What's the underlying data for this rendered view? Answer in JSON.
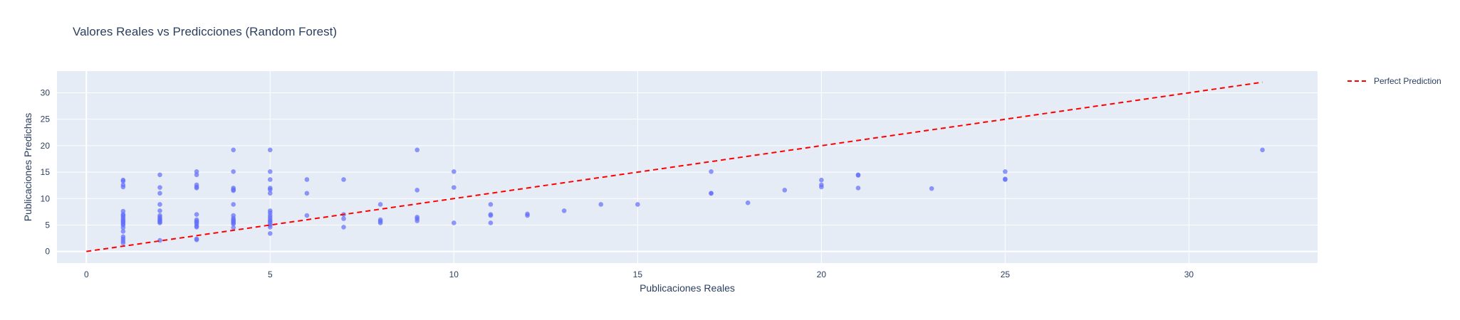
{
  "chart_data": {
    "type": "scatter",
    "title": "Valores Reales vs Predicciones (Random Forest)",
    "xlabel": "Publicaciones Reales",
    "ylabel": "Publicaciones Predichas",
    "xlim": [
      -0.8,
      33.5
    ],
    "ylim": [
      -2.2,
      34.1
    ],
    "xticks": [
      0,
      5,
      10,
      15,
      20,
      25,
      30
    ],
    "yticks": [
      0,
      5,
      10,
      15,
      20,
      25,
      30
    ],
    "grid": true,
    "legend_position": "top-right",
    "colors": {
      "points": "#636efa",
      "line": "#ff0000",
      "plot_bg": "#e5ecf6",
      "grid": "#ffffff",
      "text": "#2a3f5f"
    },
    "series": [
      {
        "type": "scatter",
        "x": [
          1,
          1,
          1,
          1,
          1,
          1,
          1,
          1,
          1,
          1,
          1,
          1,
          1,
          1,
          1,
          1,
          1,
          1,
          1,
          1,
          2,
          2,
          2,
          2,
          2,
          2,
          2,
          2,
          2,
          2,
          2,
          2,
          2,
          3,
          3,
          3,
          3,
          3,
          3,
          3,
          3,
          3,
          3,
          3,
          3,
          3,
          3,
          4,
          4,
          4,
          4,
          4,
          4,
          4,
          4,
          4,
          4,
          4,
          4,
          4,
          4,
          5,
          5,
          5,
          5,
          5,
          5,
          5,
          5,
          5,
          5,
          5,
          5,
          5,
          5,
          5,
          5,
          6,
          6,
          6,
          7,
          7,
          7,
          7,
          8,
          8,
          8,
          8,
          9,
          9,
          9,
          9,
          9,
          10,
          10,
          10,
          11,
          11,
          11,
          11,
          12,
          12,
          13,
          14,
          15,
          17,
          17,
          17,
          18,
          19,
          20,
          20,
          20,
          21,
          21,
          21,
          23,
          25,
          25,
          25,
          32
        ],
        "y": [
          13.5,
          13.3,
          12.6,
          12.2,
          7.6,
          7.0,
          6.8,
          6.5,
          6.2,
          5.9,
          5.7,
          5.5,
          5.2,
          5.0,
          4.5,
          3.8,
          2.8,
          2.4,
          2.0,
          1.6,
          14.5,
          12.1,
          11.0,
          8.9,
          7.7,
          6.8,
          6.5,
          6.2,
          6.0,
          5.8,
          5.6,
          5.4,
          2.1,
          15.1,
          14.5,
          12.6,
          12.2,
          12.0,
          7.0,
          6.0,
          5.7,
          5.5,
          5.2,
          4.8,
          4.6,
          2.4,
          2.2,
          19.2,
          15.1,
          12.0,
          11.7,
          11.5,
          8.9,
          6.8,
          6.3,
          6.0,
          5.8,
          5.6,
          5.4,
          5.2,
          4.5,
          19.2,
          15.1,
          13.6,
          12.0,
          11.7,
          11.0,
          7.7,
          7.3,
          6.8,
          6.4,
          6.0,
          5.7,
          5.4,
          5.0,
          4.6,
          3.4,
          13.6,
          11.0,
          6.8,
          13.6,
          7.0,
          6.2,
          4.6,
          8.9,
          6.0,
          5.7,
          5.4,
          19.2,
          11.6,
          6.5,
          6.2,
          5.8,
          15.1,
          12.1,
          5.4,
          8.9,
          7.0,
          6.8,
          5.4,
          7.1,
          6.8,
          7.7,
          8.9,
          8.9,
          15.1,
          11.0,
          11.0,
          9.2,
          11.6,
          13.5,
          12.6,
          12.2,
          14.5,
          14.4,
          12.0,
          11.9,
          15.1,
          13.7,
          13.6,
          19.2
        ]
      },
      {
        "type": "line",
        "name": "Perfect Prediction",
        "dash": "dash",
        "x": [
          0,
          32
        ],
        "y": [
          0,
          32
        ]
      }
    ]
  }
}
